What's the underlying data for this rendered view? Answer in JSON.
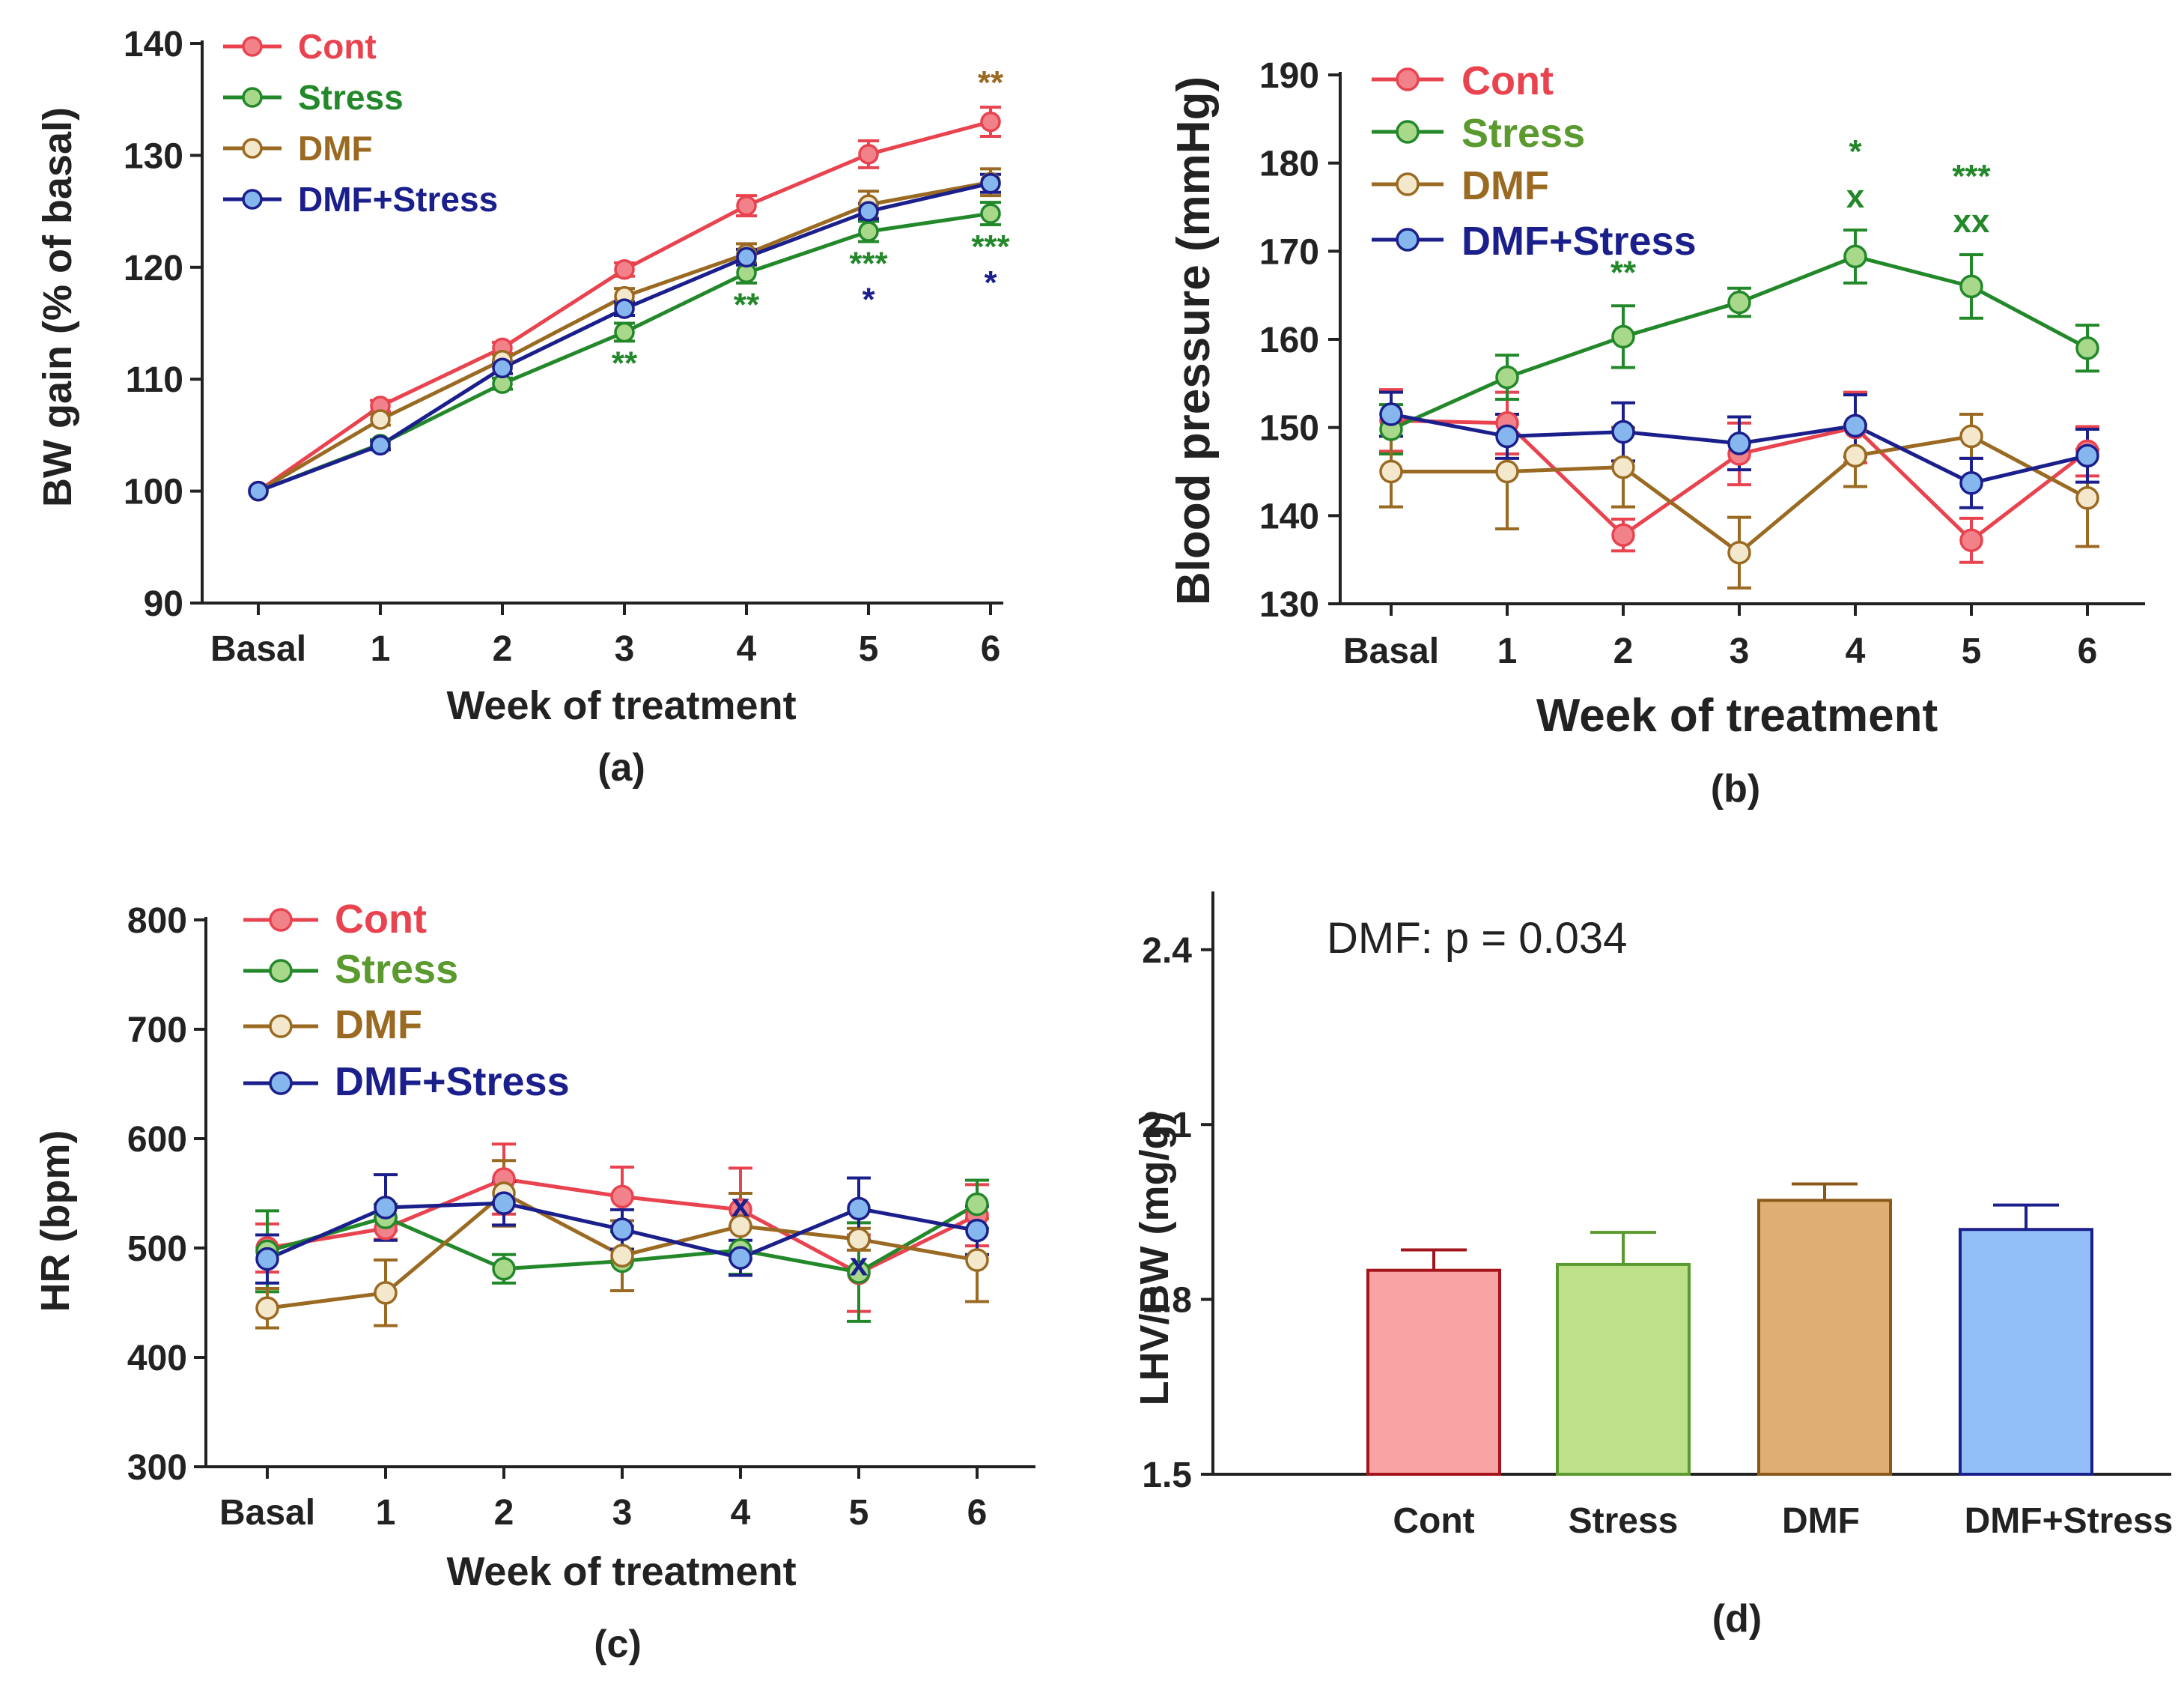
{
  "colors": {
    "cont": "#e8434f",
    "stress": "#23882a",
    "dmf": "#9a6a22",
    "dmfstress": "#1b1f8c",
    "cont_fill": "#f2828a",
    "stress_fill": "#a8d98a",
    "dmf_fill": "#f3e8cc",
    "dmfstress_fill": "#86b6ee",
    "cont_legend": "#e8434f",
    "stress_legend_a": "#23882a",
    "stress_legend_bc": "#5a9a2e",
    "dmf_legend": "#9a6a22",
    "dmfstress_legend": "#1b1f8c",
    "bar_cont_fill": "#f8a4a4",
    "bar_cont_edge": "#a3141b",
    "bar_stress_fill": "#bde088",
    "bar_stress_edge": "#5a9a2e",
    "bar_dmf_fill": "#dfae72",
    "bar_dmf_edge": "#8a5818",
    "bar_dmfstress_fill": "#93bff8",
    "bar_dmfstress_edge": "#1b1f8c",
    "axis": "#222222"
  },
  "chart_data": [
    {
      "panel": "(a)",
      "type": "line",
      "xlabel": "Week of treatment",
      "ylabel": "BW gain (% of basal)",
      "categories": [
        "Basal",
        "1",
        "2",
        "3",
        "4",
        "5",
        "6"
      ],
      "ylim": [
        90,
        140
      ],
      "yticks": [
        "90",
        "100",
        "110",
        "120",
        "130",
        "140"
      ],
      "legend_position": "top-left",
      "series": [
        {
          "name": "Cont",
          "key": "cont",
          "values": [
            100,
            107.6,
            112.8,
            119.8,
            125.5,
            130.1,
            133.0
          ],
          "errors": [
            0,
            0.5,
            0.5,
            0.6,
            0.9,
            1.2,
            1.3
          ]
        },
        {
          "name": "Stress",
          "key": "stress",
          "values": [
            100,
            104.2,
            109.6,
            114.2,
            119.5,
            123.2,
            124.8
          ],
          "errors": [
            0,
            0.4,
            0.5,
            0.8,
            0.9,
            0.9,
            1.0
          ]
        },
        {
          "name": "DMF",
          "key": "dmf",
          "values": [
            100,
            106.4,
            111.7,
            117.4,
            121.2,
            125.6,
            127.6
          ],
          "errors": [
            0,
            0.5,
            0.5,
            0.7,
            0.9,
            1.2,
            1.2
          ]
        },
        {
          "name": "DMF+Stress",
          "key": "dmfstress",
          "values": [
            100,
            104.1,
            111.0,
            116.3,
            120.9,
            125.0,
            127.5
          ],
          "errors": [
            0,
            0.4,
            0.5,
            0.6,
            0.7,
            0.7,
            0.8
          ]
        }
      ],
      "annotations": [
        {
          "text": "**",
          "category": "3",
          "color_key": "stress",
          "position": "below"
        },
        {
          "text": "**",
          "category": "4",
          "color_key": "stress",
          "position": "below"
        },
        {
          "text": "***",
          "category": "5",
          "color_key": "stress",
          "position": "below"
        },
        {
          "text": "*",
          "category": "5",
          "color_key": "dmfstress",
          "position": "below"
        },
        {
          "text": "**",
          "category": "6",
          "color_key": "dmf",
          "position": "above"
        },
        {
          "text": "***",
          "category": "6",
          "color_key": "stress",
          "position": "below"
        },
        {
          "text": "*",
          "category": "6",
          "color_key": "dmfstress",
          "position": "below"
        }
      ]
    },
    {
      "panel": "(b)",
      "type": "line",
      "xlabel": "Week of treatment",
      "ylabel": "Blood pressure (mmHg)",
      "categories": [
        "Basal",
        "1",
        "2",
        "3",
        "4",
        "5",
        "6"
      ],
      "ylim": [
        130,
        190
      ],
      "yticks": [
        "130",
        "140",
        "150",
        "160",
        "170",
        "180",
        "190"
      ],
      "legend_position": "top-left",
      "series": [
        {
          "name": "Cont",
          "key": "cont",
          "values": [
            150.8,
            150.5,
            137.8,
            147.0,
            150.0,
            137.2,
            147.3
          ],
          "errors": [
            3.5,
            3.5,
            1.8,
            3.5,
            4.0,
            2.5,
            2.8
          ]
        },
        {
          "name": "Stress",
          "key": "stress",
          "values": [
            149.8,
            155.7,
            160.3,
            164.2,
            169.4,
            166.0,
            159.0
          ],
          "errors": [
            2.8,
            2.5,
            3.5,
            1.6,
            3.0,
            3.6,
            2.6
          ]
        },
        {
          "name": "DMF",
          "key": "dmf",
          "values": [
            145.0,
            145.0,
            145.5,
            135.8,
            146.8,
            149.0,
            142.0
          ],
          "errors": [
            4.0,
            6.5,
            4.5,
            4.0,
            3.5,
            2.5,
            5.5
          ]
        },
        {
          "name": "DMF+Stress",
          "key": "dmfstress",
          "values": [
            151.5,
            149.0,
            149.5,
            148.2,
            150.2,
            143.7,
            146.8
          ],
          "errors": [
            2.5,
            2.5,
            3.3,
            3.0,
            3.5,
            2.8,
            3.0
          ]
        }
      ],
      "annotations": [
        {
          "text": "**",
          "category": "2",
          "color_key": "stress",
          "position": "above"
        },
        {
          "text": "x",
          "category": "4",
          "color_key": "stress",
          "position": "above"
        },
        {
          "text": "*",
          "category": "4",
          "color_key": "stress",
          "position": "above-2"
        },
        {
          "text": "xx",
          "category": "5",
          "color_key": "stress",
          "position": "above"
        },
        {
          "text": "***",
          "category": "5",
          "color_key": "stress",
          "position": "above-2"
        }
      ]
    },
    {
      "panel": "(c)",
      "type": "line",
      "xlabel": "Week of treatment",
      "ylabel": "HR (bpm)",
      "categories": [
        "Basal",
        "1",
        "2",
        "3",
        "4",
        "5",
        "6"
      ],
      "ylim": [
        300,
        800
      ],
      "yticks": [
        "300",
        "400",
        "500",
        "600",
        "700",
        "800"
      ],
      "legend_position": "top-left",
      "series": [
        {
          "name": "Cont",
          "key": "cont",
          "values": [
            500,
            518,
            563,
            547,
            535,
            477,
            530
          ],
          "errors": [
            22,
            10,
            32,
            27,
            38,
            35,
            28
          ]
        },
        {
          "name": "Stress",
          "key": "stress",
          "values": [
            497,
            528,
            481,
            488,
            498,
            478,
            540
          ],
          "errors": [
            37,
            12,
            13,
            27,
            22,
            45,
            22
          ]
        },
        {
          "name": "DMF",
          "key": "dmf",
          "values": [
            445,
            459,
            550,
            493,
            520,
            508,
            489
          ],
          "errors": [
            18,
            30,
            30,
            32,
            30,
            10,
            38
          ]
        },
        {
          "name": "DMF+Stress",
          "key": "dmfstress",
          "values": [
            490,
            537,
            541,
            517,
            491,
            536,
            516
          ],
          "errors": [
            22,
            30,
            20,
            18,
            16,
            28,
            22
          ]
        }
      ],
      "annotations": [
        {
          "text": "x",
          "category": "4",
          "color_key": "dmfstress",
          "value": 540
        },
        {
          "text": "x",
          "category": "5",
          "color_key": "dmfstress",
          "value": 486
        }
      ]
    },
    {
      "panel": "(d)",
      "type": "bar",
      "xlabel": "",
      "ylabel": "LHV/BW (mg/g)",
      "categories": [
        "Cont",
        "Stress",
        "DMF",
        "DMF+Stress"
      ],
      "values": [
        1.85,
        1.86,
        1.97,
        1.92
      ],
      "errors": [
        0.035,
        0.055,
        0.028,
        0.042
      ],
      "ylim": [
        1.5,
        2.5
      ],
      "yticks": [
        "1.5",
        "1.8",
        "2.1",
        "2.4"
      ],
      "annotation": "DMF: p = 0.034"
    }
  ]
}
